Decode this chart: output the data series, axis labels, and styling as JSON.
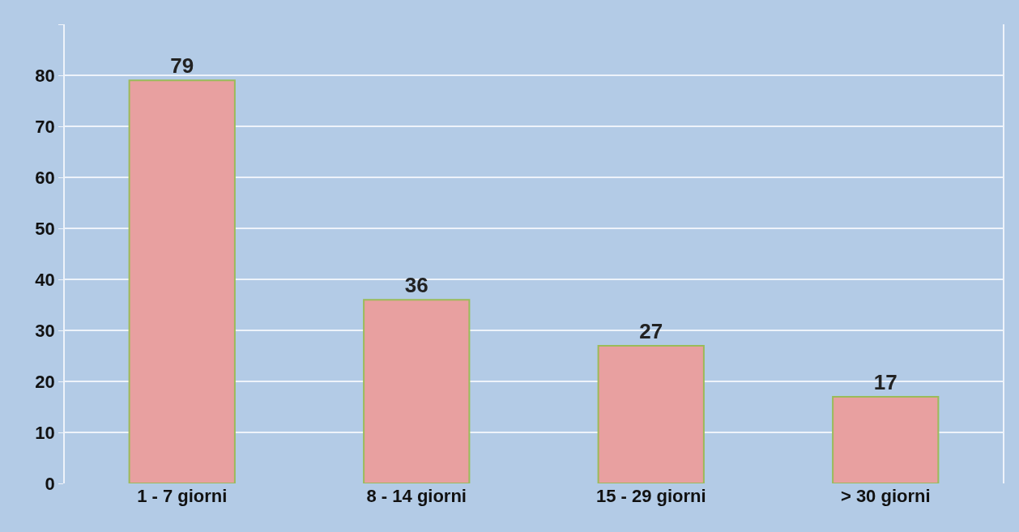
{
  "chart_data": {
    "type": "bar",
    "categories": [
      "1 - 7 giorni",
      "8 - 14 giorni",
      "15 - 29 giorni",
      "> 30 giorni"
    ],
    "values": [
      79,
      36,
      27,
      17
    ],
    "color": "#e8a0a0",
    "ylim": [
      0,
      90
    ],
    "yticks": [
      0,
      10,
      20,
      30,
      40,
      50,
      60,
      70,
      80,
      {
        "value": 90,
        "label": null
      }
    ],
    "grid": "y",
    "data_labels": true
  }
}
